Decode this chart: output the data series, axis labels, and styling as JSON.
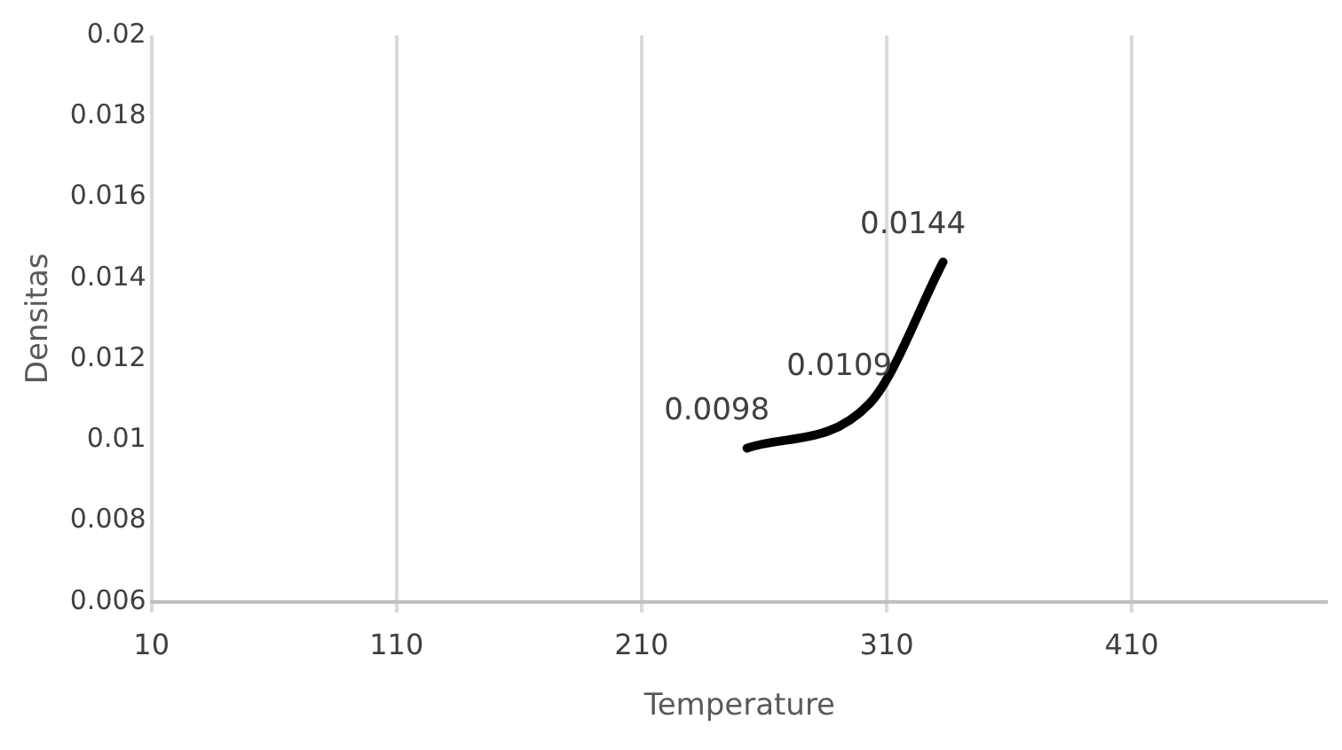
{
  "chart_data": {
    "type": "line",
    "xlabel": "Temperature",
    "ylabel": "Densitas",
    "x": [
      253,
      303,
      333
    ],
    "series": [
      {
        "color": "#000000",
        "values": [
          0.0098,
          0.0109,
          0.0144
        ]
      }
    ],
    "xlim": [
      10,
      490
    ],
    "xticks": [
      10,
      110,
      210,
      310,
      410
    ],
    "ylim": [
      0.006,
      0.02
    ],
    "yticks": [
      0.006,
      0.008,
      0.01,
      0.012,
      0.014,
      0.016,
      0.018,
      0.02
    ],
    "grid": "x",
    "data_labels": true,
    "marker": "none",
    "legend": false
  }
}
